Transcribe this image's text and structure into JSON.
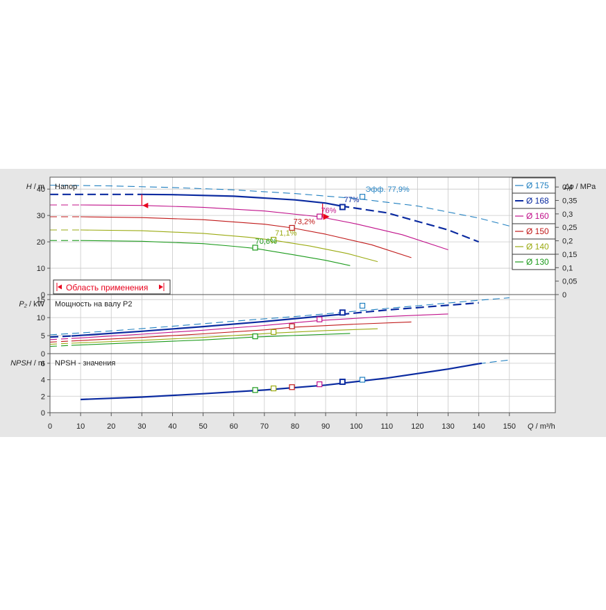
{
  "colors": {
    "background": "#e6e6e6",
    "plot_bg": "#ffffff",
    "grid": "#c8c8c8",
    "frame": "#555555",
    "red_marker": "#e8001c",
    "d175": "#1f7fc0",
    "d168": "#0a2aa0",
    "d160": "#c0108a",
    "d150": "#c01818",
    "d140": "#9aaa10",
    "d130": "#1a9a1a"
  },
  "chart_data": {
    "type": "line",
    "x": {
      "label_italic": "Q",
      "label_unit": " / m³/h",
      "range": [
        0,
        165
      ],
      "ticks": [
        "0",
        "10",
        "20",
        "30",
        "40",
        "50",
        "60",
        "70",
        "80",
        "90",
        "100",
        "110",
        "120",
        "130",
        "140",
        "150"
      ]
    },
    "legend": {
      "placement": "top-right",
      "entries": [
        {
          "key": "d175",
          "label": "Ø 175"
        },
        {
          "key": "d168",
          "label": "Ø 168"
        },
        {
          "key": "d160",
          "label": "Ø 160"
        },
        {
          "key": "d150",
          "label": "Ø 150"
        },
        {
          "key": "d140",
          "label": "Ø 140"
        },
        {
          "key": "d130",
          "label": "Ø 130"
        }
      ]
    },
    "panels": [
      {
        "id": "head",
        "title": "Напор",
        "ylabel_italic": "H",
        "ylabel_unit": " / m",
        "yrange": [
          0,
          44
        ],
        "yticks": [
          "0",
          "10",
          "20",
          "30",
          "40"
        ],
        "right_axis": {
          "label_italic": "Δp",
          "label_unit": " / MPa",
          "ticks": [
            "0",
            "0,05",
            "0,1",
            "0,15",
            "0,2",
            "0,25",
            "0,3",
            "0,35",
            "0,4"
          ],
          "values": [
            0,
            0.05,
            0.1,
            0.15,
            0.2,
            0.25,
            0.3,
            0.35,
            0.4
          ]
        },
        "application_range_label": "Область применения",
        "series": [
          {
            "key": "d175",
            "dashed": true,
            "x": [
              0,
              20,
              40,
              60,
              80,
              100,
              120,
              140,
              150
            ],
            "y": [
              41.5,
              41.2,
              40.6,
              39.7,
              38.3,
              36.4,
              33.6,
              29,
              26
            ]
          },
          {
            "key": "d168",
            "dashed_before": 30,
            "dashed_after": 95,
            "x": [
              0,
              30,
              40,
              60,
              80,
              90,
              95,
              110,
              130,
              140
            ],
            "y": [
              38,
              38,
              37.9,
              37.3,
              35.9,
              34.7,
              33.6,
              31,
              24.5,
              20
            ]
          },
          {
            "key": "d160",
            "dashed_before": 10,
            "x": [
              0,
              10,
              30,
              50,
              70,
              88,
              100,
              115,
              130
            ],
            "y": [
              34,
              34,
              33.8,
              33.1,
              31.7,
              29.5,
              26.8,
              22.7,
              17
            ]
          },
          {
            "key": "d150",
            "dashed_before": 10,
            "x": [
              0,
              10,
              30,
              50,
              70,
              79,
              90,
              105,
              118
            ],
            "y": [
              29.5,
              29.5,
              29.2,
              28.4,
              26.7,
              25.3,
              22.9,
              18.9,
              14
            ]
          },
          {
            "key": "d140",
            "dashed_before": 10,
            "x": [
              0,
              10,
              30,
              50,
              65,
              73,
              85,
              97,
              107
            ],
            "y": [
              24.5,
              24.5,
              24.2,
              23.2,
              21.7,
              20.6,
              18.4,
              15.6,
              12.5
            ]
          },
          {
            "key": "d130",
            "dashed_before": 10,
            "x": [
              0,
              10,
              30,
              50,
              60,
              67,
              80,
              90,
              98
            ],
            "y": [
              20.5,
              20.5,
              20.2,
              19.3,
              18.3,
              17.5,
              15,
              13,
              11
            ]
          }
        ],
        "markers": [
          {
            "key": "d175",
            "x": 102,
            "y": 37.1
          },
          {
            "key": "d168",
            "x": 95.5,
            "y": 33.2
          },
          {
            "key": "d160",
            "x": 88,
            "y": 29.6
          },
          {
            "key": "d150",
            "x": 79,
            "y": 25.3
          },
          {
            "key": "d140",
            "x": 73,
            "y": 20.8
          },
          {
            "key": "d130",
            "x": 67,
            "y": 17.8
          }
        ],
        "annotations": [
          {
            "key": "d175",
            "text": "Эфф.  77,9%",
            "x": 103,
            "y": 39
          },
          {
            "key": "d168",
            "text": "77%",
            "x": 96,
            "y": 35
          },
          {
            "key": "d160",
            "text": "76%",
            "x": 88.5,
            "y": 31
          },
          {
            "key": "d150",
            "text": "73,2%",
            "x": 79.5,
            "y": 26.8
          },
          {
            "key": "d140",
            "text": "71,1%",
            "x": 73.5,
            "y": 22.4
          },
          {
            "key": "d130",
            "text": "70,6%",
            "x": 67,
            "y": 19.2
          }
        ]
      },
      {
        "id": "power",
        "title": "Мощность на валу P2",
        "ylabel_italic": "P₂",
        "ylabel_unit": " / kW",
        "yrange": [
          0,
          16
        ],
        "yticks": [
          "0",
          "5",
          "10",
          "15"
        ],
        "series": [
          {
            "key": "d175",
            "dashed": true,
            "x": [
              0,
              20,
              40,
              60,
              80,
              100,
              120,
              140,
              150
            ],
            "y": [
              5.2,
              6.3,
              7.6,
              9,
              10.3,
              11.8,
              13.3,
              14.8,
              15.5
            ]
          },
          {
            "key": "d168",
            "dashed_before": 7,
            "dashed_after": 95,
            "x": [
              0,
              7,
              30,
              50,
              70,
              90,
              95,
              110,
              140
            ],
            "y": [
              4.6,
              4.9,
              6.2,
              7.5,
              8.9,
              10.5,
              10.9,
              12.1,
              14.1
            ]
          },
          {
            "key": "d160",
            "dashed_before": 7,
            "x": [
              0,
              7,
              30,
              50,
              70,
              88,
              110,
              130
            ],
            "y": [
              3.9,
              4.2,
              5.4,
              6.5,
              7.8,
              9.2,
              10.3,
              11
            ]
          },
          {
            "key": "d150",
            "dashed_before": 7,
            "x": [
              0,
              7,
              30,
              50,
              70,
              79,
              100,
              118
            ],
            "y": [
              3.2,
              3.5,
              4.5,
              5.5,
              6.6,
              7.3,
              8.2,
              8.8
            ]
          },
          {
            "key": "d140",
            "dashed_before": 7,
            "x": [
              0,
              7,
              30,
              50,
              73,
              90,
              107
            ],
            "y": [
              2.6,
              2.9,
              3.7,
              4.5,
              5.7,
              6.4,
              6.9
            ]
          },
          {
            "key": "d130",
            "dashed_before": 7,
            "x": [
              0,
              7,
              30,
              50,
              67,
              85,
              98
            ],
            "y": [
              2,
              2.3,
              3.1,
              3.8,
              4.6,
              5.2,
              5.6
            ]
          }
        ],
        "markers": [
          {
            "key": "d175",
            "x": 102,
            "y": 13.3
          },
          {
            "key": "d168",
            "x": 95.5,
            "y": 11.4
          },
          {
            "key": "d160",
            "x": 88,
            "y": 9.5
          },
          {
            "key": "d150",
            "x": 79,
            "y": 7.6
          },
          {
            "key": "d140",
            "x": 73,
            "y": 6
          },
          {
            "key": "d130",
            "x": 67,
            "y": 4.8
          }
        ]
      },
      {
        "id": "npsh",
        "title": "NPSH - значения",
        "ylabel_italic": "NPSH",
        "ylabel_unit": " / m",
        "yrange": [
          0,
          7
        ],
        "yticks": [
          "0",
          "2",
          "4",
          "6"
        ],
        "series": [
          {
            "key": "d175",
            "dashed_after": 140,
            "x": [
              10,
              30,
              50,
              70,
              90,
              110,
              130,
              140,
              150
            ],
            "y": [
              1.6,
              1.9,
              2.3,
              2.75,
              3.35,
              4.2,
              5.3,
              5.95,
              6.4
            ]
          },
          {
            "key": "d168",
            "dashed_after": 140,
            "x": [
              10,
              30,
              50,
              70,
              90,
              110,
              130,
              140,
              141
            ],
            "y": [
              1.6,
              1.9,
              2.3,
              2.75,
              3.35,
              4.2,
              5.3,
              5.95,
              6.0
            ]
          }
        ],
        "markers": [
          {
            "key": "d175",
            "x": 102,
            "y": 4.0
          },
          {
            "key": "d168",
            "x": 95.5,
            "y": 3.75
          },
          {
            "key": "d160",
            "x": 88,
            "y": 3.45
          },
          {
            "key": "d150",
            "x": 79,
            "y": 3.1
          },
          {
            "key": "d140",
            "x": 73,
            "y": 2.95
          },
          {
            "key": "d130",
            "x": 67,
            "y": 2.75
          }
        ]
      }
    ]
  }
}
